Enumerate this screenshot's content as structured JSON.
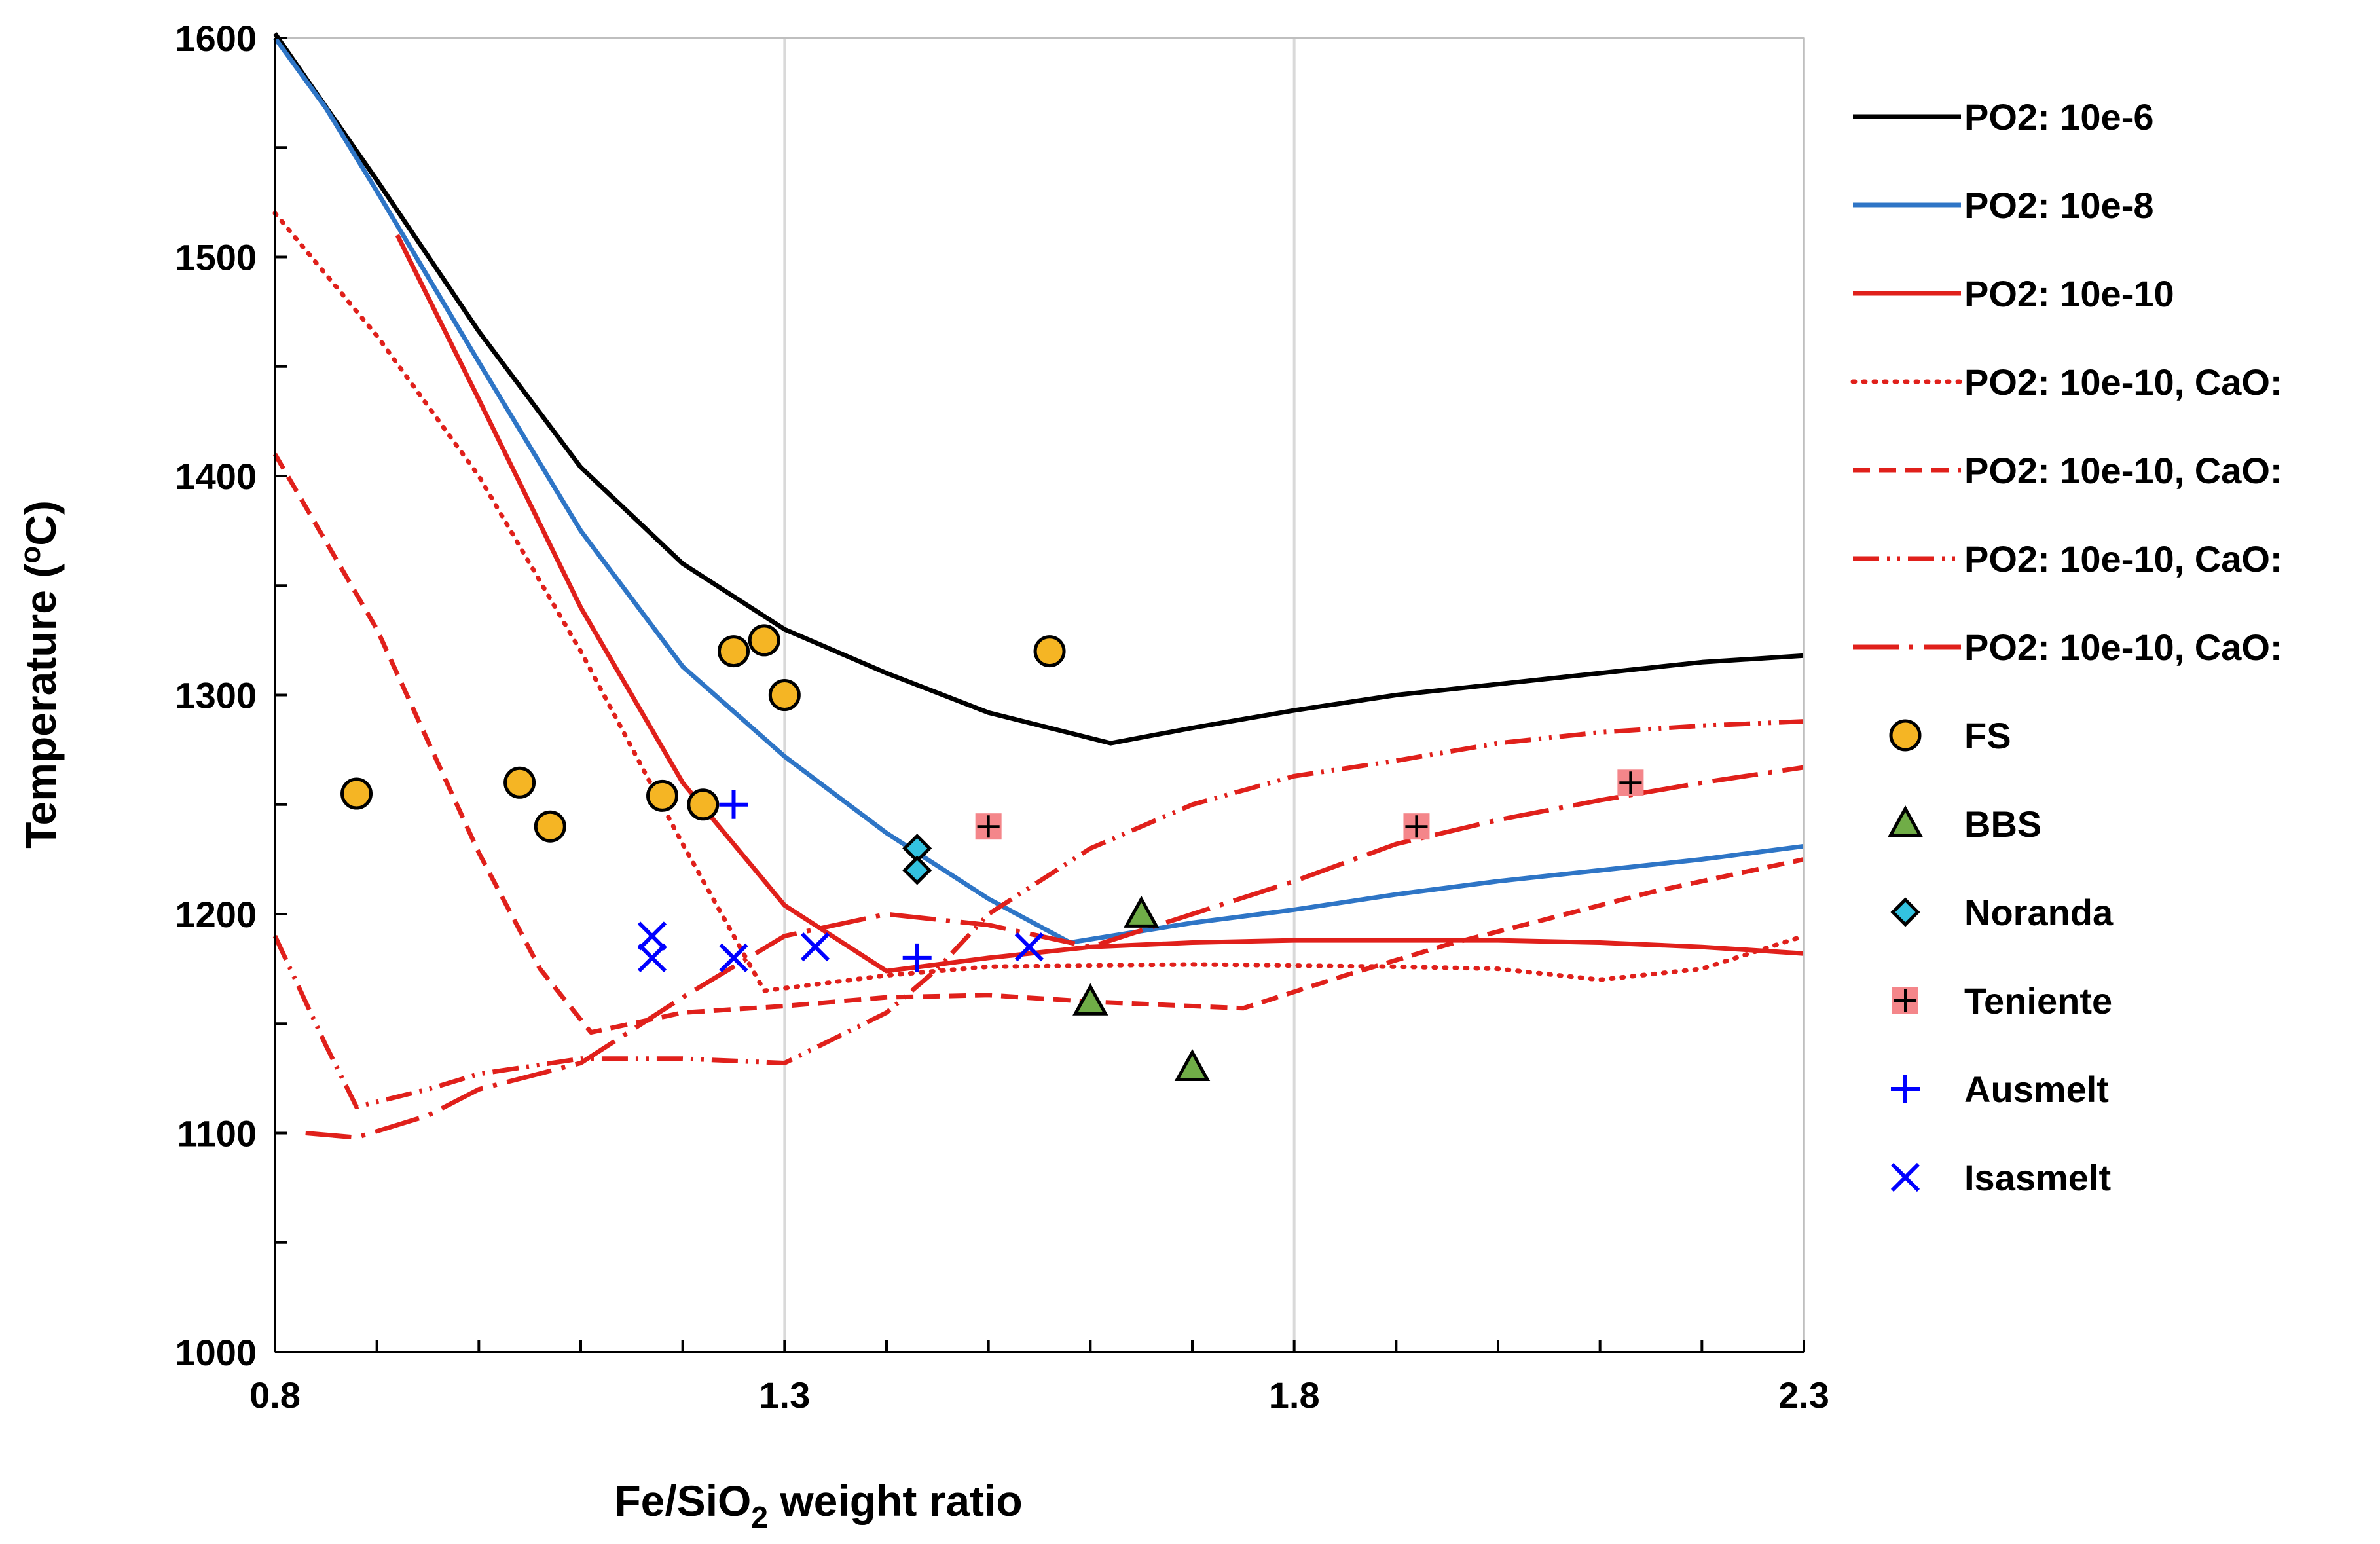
{
  "chart_data": {
    "type": "scatter",
    "title": "",
    "xlabel": "Fe/SiO2 weight ratio",
    "xlabel_parts": {
      "pre": "Fe/SiO",
      "sub": "2",
      "post": " weight ratio"
    },
    "ylabel": "Temperature (oC)",
    "ylabel_parts": {
      "pre": "Temperature (",
      "sup": "o",
      "post": "C)"
    },
    "xlim": [
      0.8,
      2.3
    ],
    "ylim": [
      1000,
      1600
    ],
    "x_ticks": [
      0.8,
      1.3,
      1.8,
      2.3
    ],
    "x_tick_labels": [
      "0.8",
      "1.3",
      "1.8",
      "2.3"
    ],
    "x_minor_step": 0.1,
    "y_ticks": [
      1000,
      1100,
      1200,
      1300,
      1400,
      1500,
      1600
    ],
    "y_tick_labels": [
      "1000",
      "1100",
      "1200",
      "1300",
      "1400",
      "1500",
      "1600"
    ],
    "y_minor_step": 50,
    "grid": "vertical major gridlines only",
    "legend_position": "right",
    "series": [
      {
        "name": "PO2: 10e-6",
        "kind": "line",
        "color": "#000000",
        "dash": "solid",
        "points": [
          [
            0.8,
            1602
          ],
          [
            0.9,
            1535
          ],
          [
            1.0,
            1466
          ],
          [
            1.1,
            1404
          ],
          [
            1.2,
            1360
          ],
          [
            1.3,
            1330
          ],
          [
            1.4,
            1310
          ],
          [
            1.5,
            1292
          ],
          [
            1.62,
            1278
          ],
          [
            1.7,
            1285
          ],
          [
            1.8,
            1293
          ],
          [
            1.9,
            1300
          ],
          [
            2.0,
            1305
          ],
          [
            2.1,
            1310
          ],
          [
            2.2,
            1315
          ],
          [
            2.3,
            1318
          ]
        ]
      },
      {
        "name": "PO2: 10e-8",
        "kind": "line",
        "color": "#2e75c6",
        "dash": "solid",
        "points": [
          [
            0.8,
            1600
          ],
          [
            0.85,
            1568
          ],
          [
            0.9,
            1530
          ],
          [
            1.0,
            1452
          ],
          [
            1.1,
            1375
          ],
          [
            1.2,
            1313
          ],
          [
            1.3,
            1272
          ],
          [
            1.4,
            1237
          ],
          [
            1.5,
            1207
          ],
          [
            1.58,
            1187
          ],
          [
            1.7,
            1196
          ],
          [
            1.8,
            1202
          ],
          [
            1.9,
            1209
          ],
          [
            2.0,
            1215
          ],
          [
            2.1,
            1220
          ],
          [
            2.2,
            1225
          ],
          [
            2.3,
            1231
          ]
        ]
      },
      {
        "name": "PO2: 10e-10",
        "kind": "line",
        "color": "#e0201b",
        "dash": "solid",
        "points": [
          [
            0.92,
            1510
          ],
          [
            1.0,
            1435
          ],
          [
            1.1,
            1340
          ],
          [
            1.2,
            1260
          ],
          [
            1.3,
            1204
          ],
          [
            1.4,
            1174
          ],
          [
            1.5,
            1180
          ],
          [
            1.6,
            1185
          ],
          [
            1.7,
            1187
          ],
          [
            1.8,
            1188
          ],
          [
            2.0,
            1188
          ],
          [
            2.1,
            1187
          ],
          [
            2.2,
            1185
          ],
          [
            2.3,
            1182
          ]
        ]
      },
      {
        "name": "PO2: 10e-10, CaO:",
        "kind": "line",
        "color": "#e0201b",
        "dash": "dotted",
        "points": [
          [
            0.8,
            1520
          ],
          [
            0.9,
            1464
          ],
          [
            1.0,
            1400
          ],
          [
            1.1,
            1320
          ],
          [
            1.2,
            1232
          ],
          [
            1.28,
            1165
          ],
          [
            1.4,
            1172
          ],
          [
            1.5,
            1176
          ],
          [
            1.7,
            1177
          ],
          [
            1.9,
            1176
          ],
          [
            2.0,
            1175
          ],
          [
            2.1,
            1170
          ],
          [
            2.2,
            1175
          ],
          [
            2.3,
            1190
          ]
        ]
      },
      {
        "name": "PO2: 10e-10, CaO:",
        "kind": "line",
        "color": "#e0201b",
        "dash": "dashed",
        "points": [
          [
            0.8,
            1410
          ],
          [
            0.9,
            1330
          ],
          [
            1.0,
            1228
          ],
          [
            1.06,
            1175
          ],
          [
            1.11,
            1146
          ],
          [
            1.2,
            1155
          ],
          [
            1.3,
            1158
          ],
          [
            1.4,
            1162
          ],
          [
            1.5,
            1163
          ],
          [
            1.6,
            1160
          ],
          [
            1.75,
            1157
          ],
          [
            1.85,
            1172
          ],
          [
            1.95,
            1186
          ],
          [
            2.05,
            1198
          ],
          [
            2.15,
            1210
          ],
          [
            2.3,
            1225
          ]
        ]
      },
      {
        "name": "PO2: 10e-10, CaO:",
        "kind": "line",
        "color": "#e0201b",
        "dash": "dashdotdot",
        "points": [
          [
            0.8,
            1190
          ],
          [
            0.85,
            1140
          ],
          [
            0.88,
            1112
          ],
          [
            0.95,
            1120
          ],
          [
            1.0,
            1127
          ],
          [
            1.1,
            1134
          ],
          [
            1.2,
            1134
          ],
          [
            1.3,
            1132
          ],
          [
            1.4,
            1155
          ],
          [
            1.45,
            1175
          ],
          [
            1.5,
            1200
          ],
          [
            1.6,
            1230
          ],
          [
            1.7,
            1250
          ],
          [
            1.8,
            1263
          ],
          [
            1.9,
            1270
          ],
          [
            2.0,
            1278
          ],
          [
            2.1,
            1283
          ],
          [
            2.2,
            1286
          ],
          [
            2.3,
            1288
          ]
        ]
      },
      {
        "name": "PO2: 10e-10, CaO:",
        "kind": "line",
        "color": "#e0201b",
        "dash": "longdash",
        "points": [
          [
            0.83,
            1100
          ],
          [
            0.88,
            1098
          ],
          [
            0.95,
            1108
          ],
          [
            1.0,
            1120
          ],
          [
            1.1,
            1132
          ],
          [
            1.2,
            1162
          ],
          [
            1.3,
            1190
          ],
          [
            1.4,
            1200
          ],
          [
            1.5,
            1195
          ],
          [
            1.6,
            1185
          ],
          [
            1.7,
            1200
          ],
          [
            1.8,
            1215
          ],
          [
            1.9,
            1232
          ],
          [
            2.0,
            1243
          ],
          [
            2.1,
            1252
          ],
          [
            2.2,
            1260
          ],
          [
            2.3,
            1267
          ]
        ]
      },
      {
        "name": "FS",
        "kind": "marker",
        "marker": "circle",
        "color": "#f5b524",
        "stroke": "#000000",
        "points": [
          [
            0.88,
            1255
          ],
          [
            1.04,
            1260
          ],
          [
            1.07,
            1240
          ],
          [
            1.18,
            1254
          ],
          [
            1.22,
            1250
          ],
          [
            1.25,
            1320
          ],
          [
            1.28,
            1325
          ],
          [
            1.3,
            1300
          ],
          [
            1.56,
            1320
          ]
        ]
      },
      {
        "name": "BBS",
        "kind": "marker",
        "marker": "triangle",
        "color": "#70ad47",
        "stroke": "#000000",
        "points": [
          [
            1.6,
            1160
          ],
          [
            1.65,
            1200
          ],
          [
            1.7,
            1130
          ]
        ]
      },
      {
        "name": "Noranda",
        "kind": "marker",
        "marker": "diamond",
        "color": "#33c2e0",
        "stroke": "#000000",
        "points": [
          [
            1.43,
            1230
          ],
          [
            1.43,
            1220
          ]
        ]
      },
      {
        "name": "Teniente",
        "kind": "marker",
        "marker": "square-plus",
        "color": "#f4868a",
        "stroke": "#000000",
        "points": [
          [
            1.5,
            1240
          ],
          [
            1.92,
            1240
          ],
          [
            2.13,
            1260
          ]
        ]
      },
      {
        "name": "Ausmelt",
        "kind": "marker",
        "marker": "plus",
        "color": "#0000ff",
        "points": [
          [
            1.25,
            1250
          ],
          [
            1.43,
            1180
          ]
        ]
      },
      {
        "name": "Isasmelt",
        "kind": "marker",
        "marker": "x",
        "color": "#0000ff",
        "points": [
          [
            1.17,
            1190
          ],
          [
            1.17,
            1180
          ],
          [
            1.25,
            1180
          ],
          [
            1.33,
            1185
          ],
          [
            1.54,
            1185
          ]
        ]
      }
    ]
  }
}
